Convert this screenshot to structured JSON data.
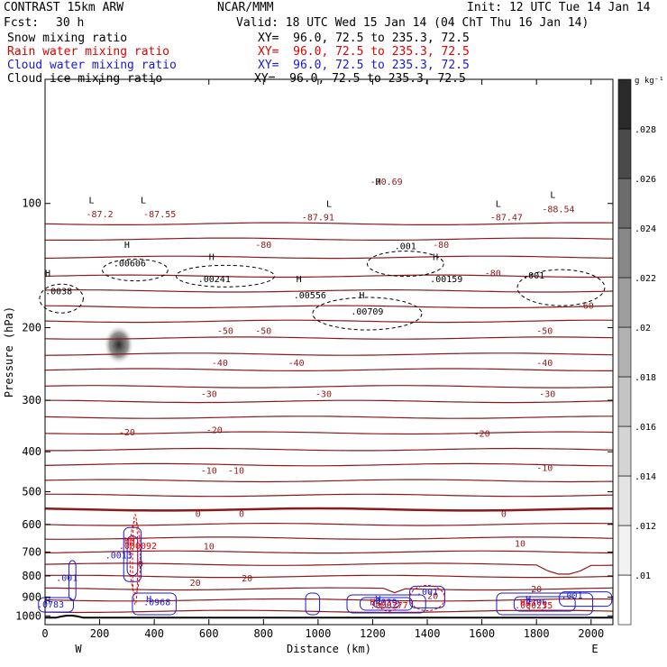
{
  "header": {
    "model": "CONTRAST 15km ARW",
    "org": "NCAR/MMM",
    "init": "Init: 12 UTC Tue 14 Jan 14",
    "fcst_label": "Fcst:",
    "fcst_value": "30 h",
    "valid": "Valid: 18 UTC Wed 15 Jan 14 (04 ChT Thu 16 Jan 14)",
    "fields": [
      {
        "name": "Snow mixing ratio",
        "xy": "XY=  96.0, 72.5 to 235.3, 72.5",
        "color": "#000000"
      },
      {
        "name": "Rain water mixing ratio",
        "xy": "XY=  96.0, 72.5 to 235.3, 72.5",
        "color": "#e00000"
      },
      {
        "name": "Cloud water mixing ratio",
        "xy": "XY=  96.0, 72.5 to 235.3, 72.5",
        "color": "#1a1ad0"
      },
      {
        "name": "Cloud ice mixing ratio",
        "xy": "XY=  96.0, 72.5 to 235.3, 72.5",
        "color": "#000000"
      }
    ]
  },
  "chart_data": {
    "type": "contour",
    "xlabel": "Distance (km)",
    "ylabel": "Pressure (hPa)",
    "x_range": [
      0,
      2080
    ],
    "y_range": [
      50,
      1050
    ],
    "y_scale": "log",
    "x_ticks": [
      0,
      200,
      400,
      600,
      800,
      1000,
      1200,
      1400,
      1600,
      1800,
      2000
    ],
    "y_ticks": [
      100,
      200,
      300,
      400,
      500,
      600,
      700,
      800,
      900,
      1000
    ],
    "x_end_labels": {
      "left": "W",
      "right": "E"
    },
    "colorbar": {
      "unit": "g kg⁻¹",
      "ticks": [
        ".01",
        ".012",
        ".014",
        ".016",
        ".018",
        ".02",
        ".022",
        ".024",
        ".026",
        ".028"
      ],
      "colors": [
        "#ffffff",
        "#f2f2f2",
        "#e4e4e4",
        "#d4d4d4",
        "#c4c4c4",
        "#b2b2b2",
        "#9e9e9e",
        "#888888",
        "#6c6c6c",
        "#4a4a4a",
        "#2a2a2a"
      ]
    },
    "temperature_contours": {
      "color": "#8b1a1a",
      "levels_c": [
        -70,
        -60,
        -50,
        -40,
        -30,
        -20,
        -10,
        0,
        10,
        20
      ],
      "labels": [
        {
          "text": "-70.69",
          "x": 1250,
          "p": 90
        },
        {
          "text": "-87.2",
          "x": 200,
          "p": 108
        },
        {
          "text": "-87.55",
          "x": 420,
          "p": 108
        },
        {
          "text": "-87.91",
          "x": 1000,
          "p": 110
        },
        {
          "text": "-87.47",
          "x": 1690,
          "p": 110
        },
        {
          "text": "-88.54",
          "x": 1880,
          "p": 105
        },
        {
          "text": "-80",
          "x": 800,
          "p": 128
        },
        {
          "text": "-80",
          "x": 1450,
          "p": 128
        },
        {
          "text": "-80",
          "x": 1640,
          "p": 150
        },
        {
          "text": "-60",
          "x": 1980,
          "p": 180
        },
        {
          "text": "-50",
          "x": 660,
          "p": 207
        },
        {
          "text": "-50",
          "x": 800,
          "p": 207
        },
        {
          "text": "-50",
          "x": 1830,
          "p": 207
        },
        {
          "text": "-40",
          "x": 640,
          "p": 248
        },
        {
          "text": "-40",
          "x": 920,
          "p": 248
        },
        {
          "text": "-40",
          "x": 1830,
          "p": 248
        },
        {
          "text": "-30",
          "x": 600,
          "p": 295
        },
        {
          "text": "-30",
          "x": 1020,
          "p": 295
        },
        {
          "text": "-30",
          "x": 1840,
          "p": 295
        },
        {
          "text": "-20",
          "x": 300,
          "p": 365
        },
        {
          "text": "-20",
          "x": 620,
          "p": 360
        },
        {
          "text": "-20",
          "x": 1600,
          "p": 368
        },
        {
          "text": "-10",
          "x": 600,
          "p": 452
        },
        {
          "text": "-10",
          "x": 700,
          "p": 452
        },
        {
          "text": "-10",
          "x": 1830,
          "p": 445
        },
        {
          "text": "0",
          "x": 560,
          "p": 575
        },
        {
          "text": "0",
          "x": 720,
          "p": 575
        },
        {
          "text": "0",
          "x": 1680,
          "p": 575
        },
        {
          "text": "10",
          "x": 600,
          "p": 690
        },
        {
          "text": "10",
          "x": 1740,
          "p": 680
        },
        {
          "text": "20",
          "x": 550,
          "p": 845
        },
        {
          "text": "20",
          "x": 740,
          "p": 825
        },
        {
          "text": "20",
          "x": 1800,
          "p": 875
        },
        {
          "text": "20",
          "x": 1420,
          "p": 910
        },
        {
          "text": "0",
          "x": 350,
          "p": 760
        }
      ]
    },
    "cloud_ice_labels": [
      {
        "text": "L",
        "x": 170,
        "p": 100
      },
      {
        "text": "L",
        "x": 360,
        "p": 100
      },
      {
        "text": "L",
        "x": 1040,
        "p": 102
      },
      {
        "text": "L",
        "x": 1660,
        "p": 102
      },
      {
        "text": "L",
        "x": 1860,
        "p": 97
      },
      {
        "text": "H",
        "x": 1220,
        "p": 90
      },
      {
        "text": "H",
        "x": 300,
        "p": 128
      },
      {
        "text": ".00606",
        "x": 310,
        "p": 142
      },
      {
        "text": "H",
        "x": 610,
        "p": 137
      },
      {
        "text": ".00241",
        "x": 620,
        "p": 155
      },
      {
        "text": "H",
        "x": 930,
        "p": 155
      },
      {
        "text": ".00556",
        "x": 970,
        "p": 170
      },
      {
        "text": "H",
        "x": 1160,
        "p": 170
      },
      {
        "text": ".00709",
        "x": 1180,
        "p": 186
      },
      {
        "text": ".001",
        "x": 1320,
        "p": 129
      },
      {
        "text": "H",
        "x": 1430,
        "p": 137
      },
      {
        "text": ".00159",
        "x": 1470,
        "p": 155
      },
      {
        "text": ".001",
        "x": 1790,
        "p": 152
      },
      {
        "text": "H",
        "x": 10,
        "p": 150
      },
      {
        "text": ".0038",
        "x": 50,
        "p": 166
      }
    ],
    "cloud_water_labels": [
      {
        "text": ".001",
        "x": 80,
        "p": 822
      },
      {
        "text": ".0013",
        "x": 270,
        "p": 725
      },
      {
        "text": "H",
        "x": 10,
        "p": 937
      },
      {
        "text": ".0783",
        "x": 20,
        "p": 954
      },
      {
        "text": "H",
        "x": 380,
        "p": 925
      },
      {
        "text": ".0968",
        "x": 410,
        "p": 942
      },
      {
        "text": "H",
        "x": 1220,
        "p": 925
      },
      {
        "text": ".4039",
        "x": 1240,
        "p": 942
      },
      {
        "text": ".001",
        "x": 1400,
        "p": 890
      },
      {
        "text": "H",
        "x": 1770,
        "p": 925
      },
      {
        "text": ".4106",
        "x": 1790,
        "p": 942
      },
      {
        "text": ".001",
        "x": 1930,
        "p": 908
      }
    ],
    "rain_water_labels": [
      {
        "text": "HH",
        "x": 310,
        "p": 668
      },
      {
        "text": ".000092",
        "x": 340,
        "p": 688
      },
      {
        "text": "H",
        "x": 1200,
        "p": 942
      },
      {
        "text": ".000277",
        "x": 1260,
        "p": 958
      },
      {
        "text": "H",
        "x": 1750,
        "p": 942
      },
      {
        "text": ".000235",
        "x": 1790,
        "p": 958
      }
    ]
  }
}
